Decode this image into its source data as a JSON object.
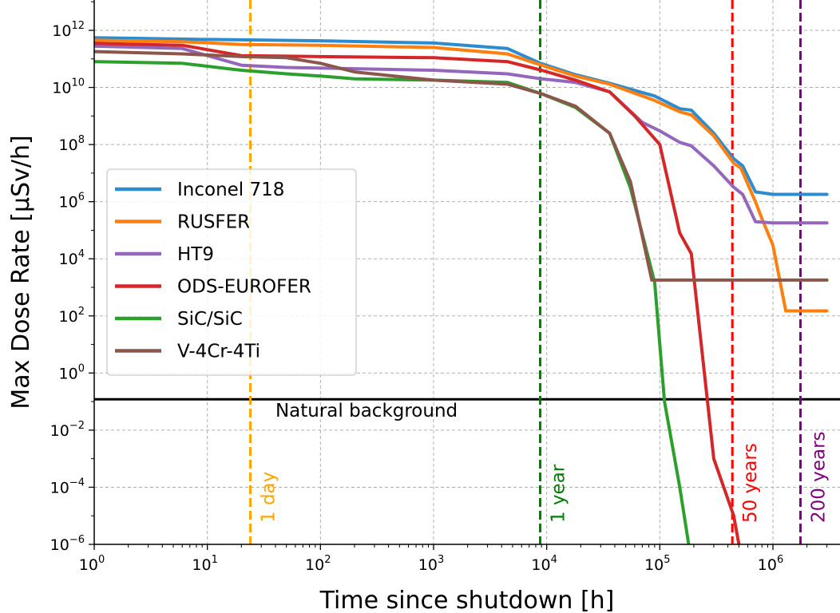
{
  "chart_data": {
    "type": "line",
    "xlabel": "Time since shutdown [h]",
    "ylabel": "Max Dose Rate [µSv/h]",
    "xscale": "log",
    "yscale": "log",
    "xlim": [
      1,
      3000000
    ],
    "ylim": [
      1e-06,
      50000000000000
    ],
    "grid": true,
    "legend_position": "center-left",
    "x_ticks": [
      {
        "base": "10",
        "exp": "0",
        "value": 1
      },
      {
        "base": "10",
        "exp": "1",
        "value": 10
      },
      {
        "base": "10",
        "exp": "2",
        "value": 100
      },
      {
        "base": "10",
        "exp": "3",
        "value": 1000
      },
      {
        "base": "10",
        "exp": "4",
        "value": 10000
      },
      {
        "base": "10",
        "exp": "5",
        "value": 100000
      },
      {
        "base": "10",
        "exp": "6",
        "value": 1000000
      }
    ],
    "y_ticks": [
      {
        "base": "10",
        "exp": "−6",
        "value": 1e-06
      },
      {
        "base": "10",
        "exp": "−4",
        "value": 0.0001
      },
      {
        "base": "10",
        "exp": "−2",
        "value": 0.01
      },
      {
        "base": "10",
        "exp": "0",
        "value": 1
      },
      {
        "base": "10",
        "exp": "2",
        "value": 100
      },
      {
        "base": "10",
        "exp": "4",
        "value": 10000
      },
      {
        "base": "10",
        "exp": "6",
        "value": 1000000
      },
      {
        "base": "10",
        "exp": "8",
        "value": 100000000
      },
      {
        "base": "10",
        "exp": "10",
        "value": 10000000000
      },
      {
        "base": "10",
        "exp": "12",
        "value": 1000000000000
      }
    ],
    "series": [
      {
        "name": "Inconel 718",
        "color": "#2c8ccd",
        "points": [
          [
            1,
            550000000000.0
          ],
          [
            10,
            480000000000.0
          ],
          [
            100,
            430000000000.0
          ],
          [
            1000,
            360000000000.0
          ],
          [
            4500,
            230000000000.0
          ],
          [
            8800,
            70000000000.0
          ],
          [
            18000,
            28000000000.0
          ],
          [
            36000,
            14000000000.0
          ],
          [
            90000,
            5000000000.0
          ],
          [
            150000,
            1800000000.0
          ],
          [
            190000,
            1600000000.0
          ],
          [
            300000,
            250000000.0
          ],
          [
            450000,
            32000000.0
          ],
          [
            540000,
            18000000.0
          ],
          [
            700000,
            2200000.0
          ],
          [
            1000000,
            1800000.0
          ],
          [
            3000000,
            1800000.0
          ]
        ]
      },
      {
        "name": "RUSFER",
        "color": "#ff7f0e",
        "points": [
          [
            1,
            450000000000.0
          ],
          [
            6,
            400000000000.0
          ],
          [
            20,
            320000000000.0
          ],
          [
            100,
            300000000000.0
          ],
          [
            1000,
            250000000000.0
          ],
          [
            4500,
            150000000000.0
          ],
          [
            9000,
            60000000000.0
          ],
          [
            18000,
            25000000000.0
          ],
          [
            36000,
            13000000000.0
          ],
          [
            90000,
            3500000000.0
          ],
          [
            150000,
            1400000000.0
          ],
          [
            190000,
            1100000000.0
          ],
          [
            300000,
            200000000.0
          ],
          [
            450000,
            22000000.0
          ],
          [
            520000,
            15000000.0
          ],
          [
            700000,
            1000000.0
          ],
          [
            800000,
            250000.0
          ],
          [
            1000000,
            30000.0
          ],
          [
            1300000,
            150.0
          ],
          [
            1500000,
            150.0
          ],
          [
            3000000,
            150.0
          ]
        ]
      },
      {
        "name": "HT9",
        "color": "#9467bd",
        "points": [
          [
            1,
            280000000000.0
          ],
          [
            6,
            230000000000.0
          ],
          [
            20,
            60000000000.0
          ],
          [
            50,
            50000000000.0
          ],
          [
            1000,
            40000000000.0
          ],
          [
            4500,
            30000000000.0
          ],
          [
            9000,
            20000000000.0
          ],
          [
            18000,
            15000000000.0
          ],
          [
            36000,
            7000000000.0
          ],
          [
            70000,
            600000000.0
          ],
          [
            100000,
            300000000.0
          ],
          [
            150000,
            120000000.0
          ],
          [
            190000,
            90000000.0
          ],
          [
            300000,
            18000000.0
          ],
          [
            450000,
            3200000.0
          ],
          [
            540000,
            1800000.0
          ],
          [
            700000,
            200000.0
          ],
          [
            1000000,
            180000.0
          ],
          [
            3000000,
            180000.0
          ]
        ]
      },
      {
        "name": "ODS-EUROFER",
        "color": "#d62728",
        "points": [
          [
            1,
            350000000000.0
          ],
          [
            6,
            300000000000.0
          ],
          [
            20,
            130000000000.0
          ],
          [
            100,
            120000000000.0
          ],
          [
            1000,
            110000000000.0
          ],
          [
            4500,
            80000000000.0
          ],
          [
            9000,
            40000000000.0
          ],
          [
            18000,
            18000000000.0
          ],
          [
            36000,
            7000000000.0
          ],
          [
            60000,
            1000000000.0
          ],
          [
            100000,
            100000000.0
          ],
          [
            150000,
            80000.0
          ],
          [
            190000,
            15000.0
          ],
          [
            300000,
            0.001
          ],
          [
            450000,
            1e-05
          ],
          [
            500000,
            1e-06
          ]
        ]
      },
      {
        "name": "SiC/SiC",
        "color": "#2ca02c",
        "points": [
          [
            1,
            80000000000.0
          ],
          [
            6,
            70000000000.0
          ],
          [
            20,
            40000000000.0
          ],
          [
            50,
            30000000000.0
          ],
          [
            100,
            25000000000.0
          ],
          [
            200,
            20000000000.0
          ],
          [
            1000,
            18000000000.0
          ],
          [
            4500,
            15000000000.0
          ],
          [
            9000,
            6000000000.0
          ],
          [
            18000,
            2000000000.0
          ],
          [
            36000,
            250000000.0
          ],
          [
            55000,
            3000000.0
          ],
          [
            90000,
            1500.0
          ],
          [
            110000,
            0.1
          ],
          [
            150000,
            0.0001
          ],
          [
            180000,
            1e-06
          ]
        ]
      },
      {
        "name": "V-4Cr-4Ti",
        "color": "#8c564b",
        "points": [
          [
            1,
            180000000000.0
          ],
          [
            6,
            150000000000.0
          ],
          [
            20,
            120000000000.0
          ],
          [
            50,
            110000000000.0
          ],
          [
            100,
            70000000000.0
          ],
          [
            200,
            35000000000.0
          ],
          [
            1000,
            18000000000.0
          ],
          [
            4500,
            13000000000.0
          ],
          [
            9000,
            6000000000.0
          ],
          [
            18000,
            2200000000.0
          ],
          [
            36000,
            250000000.0
          ],
          [
            55000,
            5000000.0
          ],
          [
            85000,
            1800.0
          ],
          [
            100000,
            1800.0
          ],
          [
            3000000,
            1800.0
          ]
        ]
      }
    ],
    "reference_lines": [
      {
        "orientation": "horizontal",
        "value": 0.12,
        "color": "#000000",
        "style": "solid",
        "label": "Natural background",
        "label_x": 40,
        "label_y_value": 0.03
      },
      {
        "orientation": "vertical",
        "value": 24,
        "color": "#ffa500",
        "style": "dashed",
        "label": "1 day"
      },
      {
        "orientation": "vertical",
        "value": 8760,
        "color": "#008000",
        "style": "dashed",
        "label": "1 year"
      },
      {
        "orientation": "vertical",
        "value": 438000,
        "color": "#ff0000",
        "style": "dashed",
        "label": "50 years"
      },
      {
        "orientation": "vertical",
        "value": 1752000,
        "color": "#800080",
        "style": "dashed",
        "label": "200 years"
      }
    ]
  }
}
